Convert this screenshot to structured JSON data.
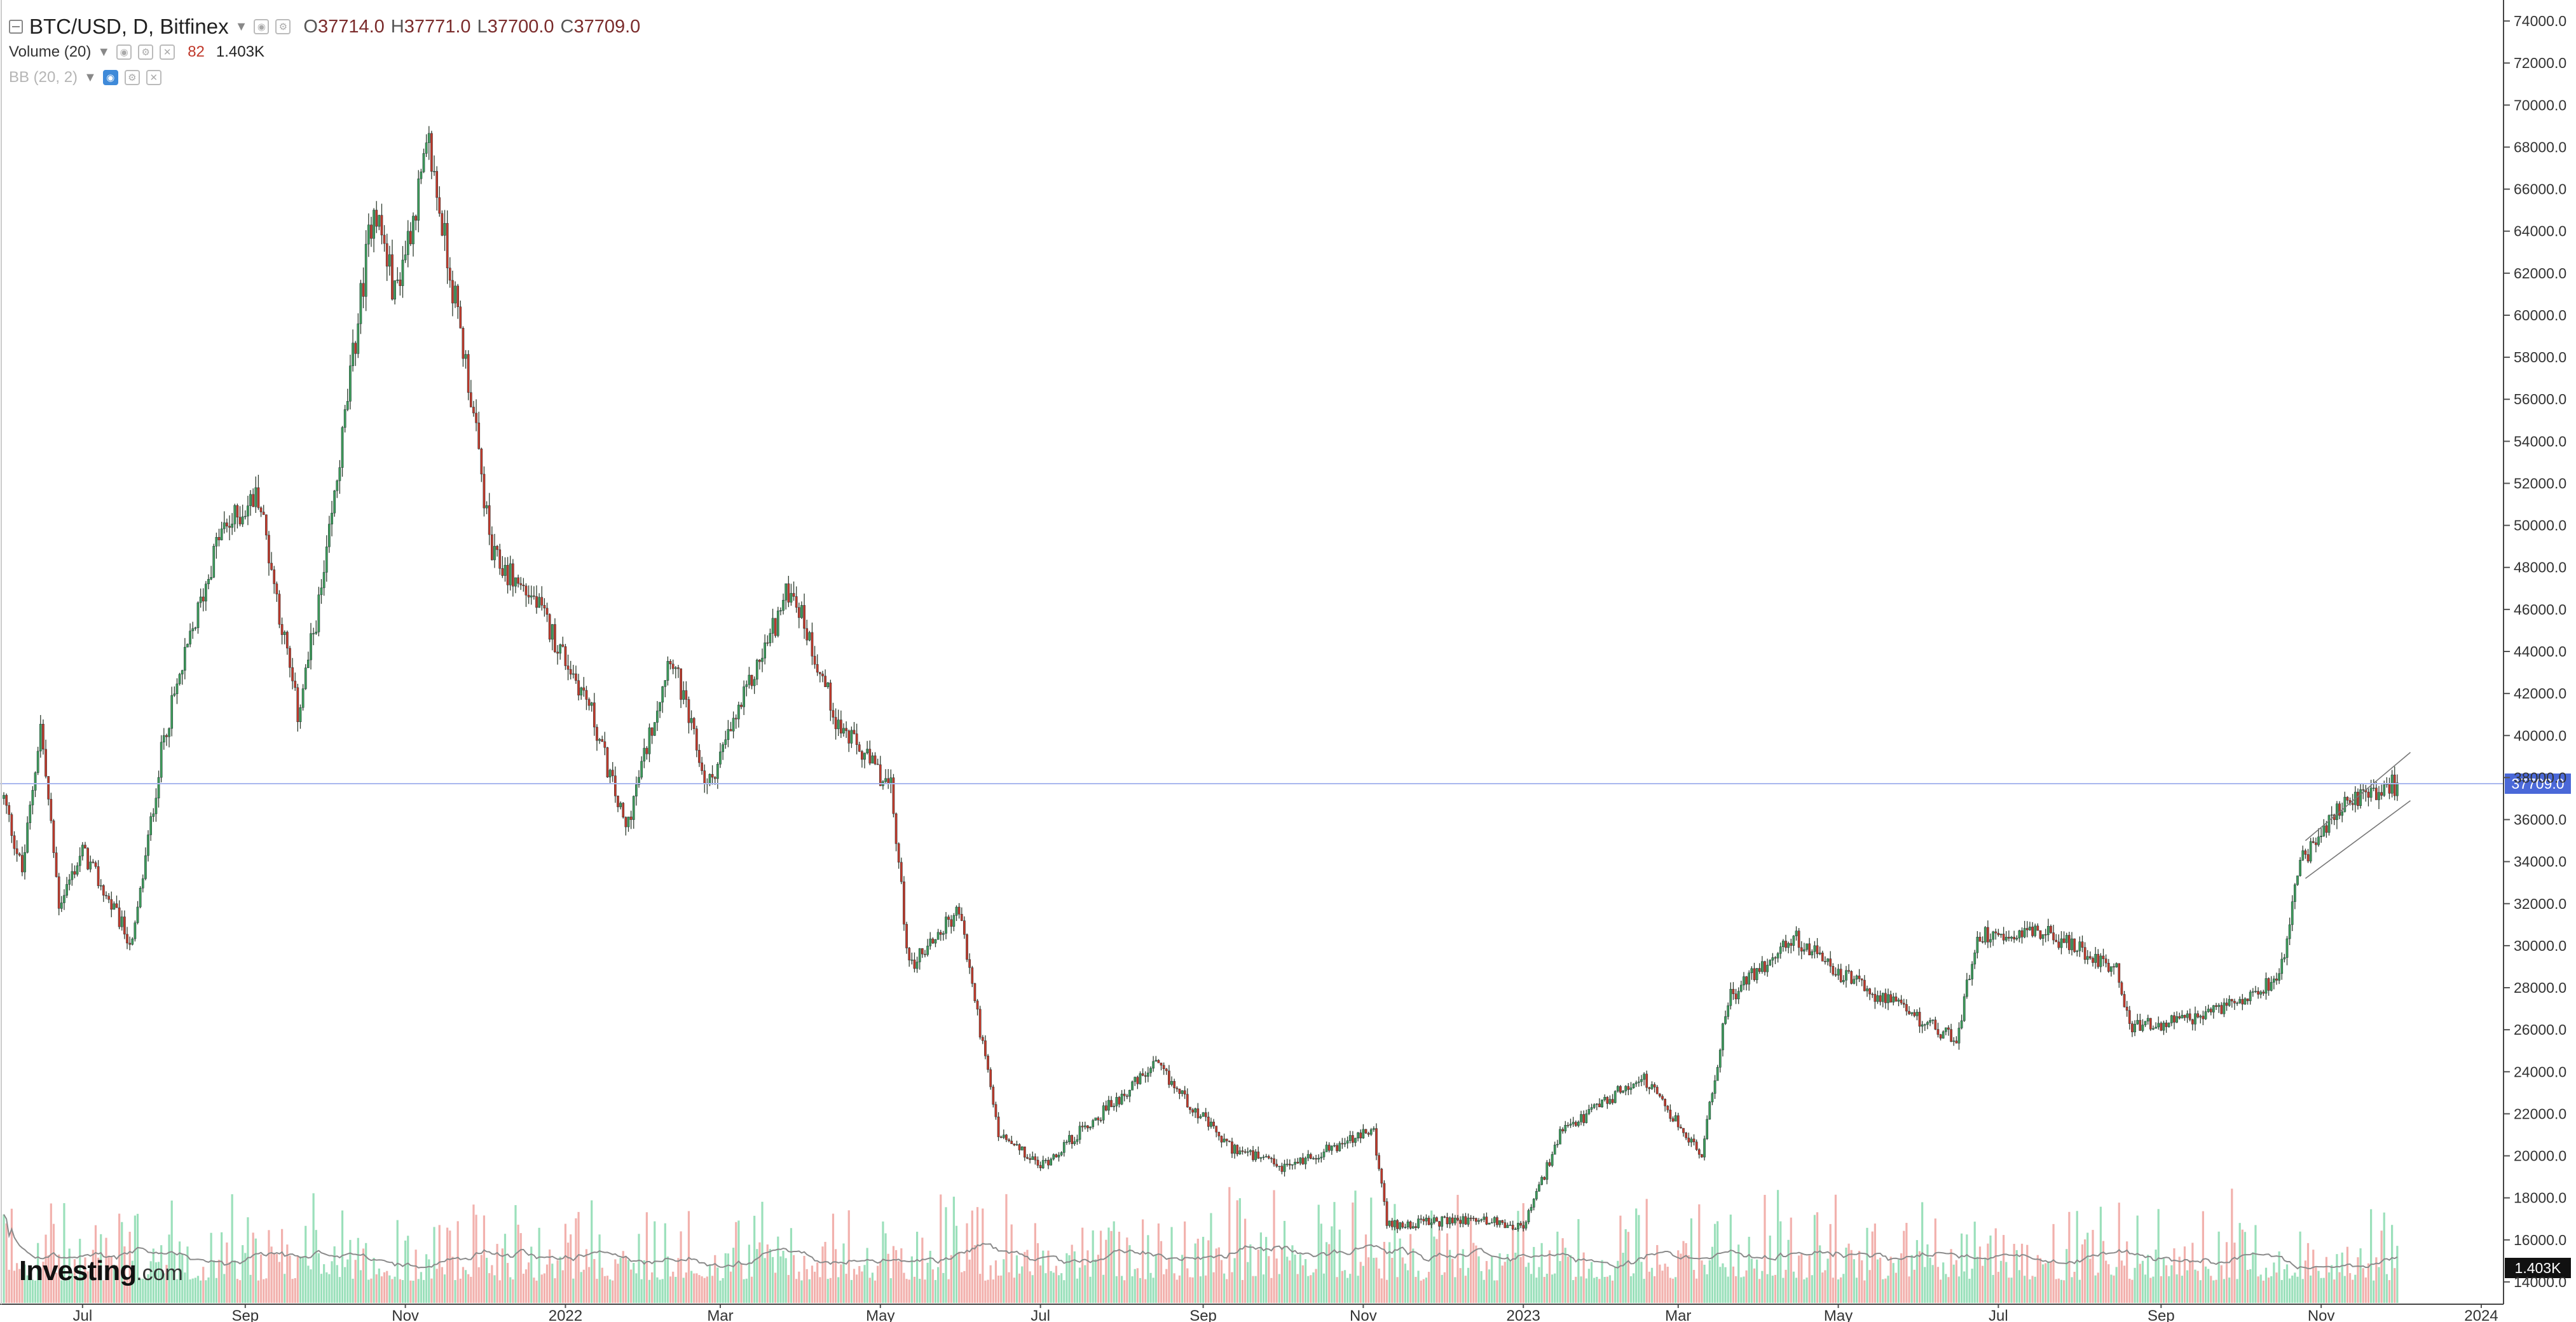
{
  "header": {
    "symbol": "BTC/USD, D, Bitfinex",
    "open_key": "O",
    "open": "37714.0",
    "high_key": "H",
    "high": "37771.0",
    "low_key": "L",
    "low": "37700.0",
    "close_key": "C",
    "close": "37709.0"
  },
  "volume_legend": {
    "label": "Volume (20)",
    "count": "82",
    "value": "1.403K"
  },
  "bb_legend": {
    "label": "BB (20, 2)"
  },
  "logo": {
    "brand": "Investing",
    "suffix": ".com"
  },
  "colors": {
    "up": "#3d9a5a",
    "down": "#c0392b",
    "up_volume": "#9be0bb",
    "down_volume": "#f2b1ad",
    "last_price": "#4a68d8",
    "grid": "#eeeeee"
  },
  "chart_data": {
    "type": "candlestick",
    "series": [
      {
        "name": "BTC/USD"
      }
    ],
    "last_price_label": "37709.0",
    "last_volume_label": "1.403K",
    "ylim": [
      13000,
      75000
    ],
    "y_ticks": [
      "74000.0",
      "72000.0",
      "70000.0",
      "68000.0",
      "66000.0",
      "64000.0",
      "62000.0",
      "60000.0",
      "58000.0",
      "56000.0",
      "54000.0",
      "52000.0",
      "50000.0",
      "48000.0",
      "46000.0",
      "44000.0",
      "42000.0",
      "40000.0",
      "38000.0",
      "36000.0",
      "34000.0",
      "32000.0",
      "30000.0",
      "28000.0",
      "26000.0",
      "24000.0",
      "22000.0",
      "20000.0",
      "18000.0",
      "16000.0",
      "14000.0"
    ],
    "x_ticks": [
      "Jul",
      "Sep",
      "Nov",
      "2022",
      "Mar",
      "May",
      "Jul",
      "Sep",
      "Nov",
      "2023",
      "Mar",
      "May",
      "Jul",
      "Sep",
      "Nov",
      "2024"
    ],
    "x_tick_dates": [
      "2021-07-01",
      "2021-09-01",
      "2021-11-01",
      "2022-01-01",
      "2022-03-01",
      "2022-05-01",
      "2022-07-01",
      "2022-09-01",
      "2022-11-01",
      "2023-01-01",
      "2023-03-01",
      "2023-05-01",
      "2023-07-01",
      "2023-09-01",
      "2023-11-01",
      "2024-01-01"
    ],
    "x_range": [
      "2021-06-01",
      "2024-01-09"
    ],
    "anchors": [
      [
        "2021-06-01",
        37000
      ],
      [
        "2021-06-08",
        33500
      ],
      [
        "2021-06-15",
        40500
      ],
      [
        "2021-06-22",
        32000
      ],
      [
        "2021-07-01",
        34500
      ],
      [
        "2021-07-20",
        30000
      ],
      [
        "2021-08-01",
        40000
      ],
      [
        "2021-08-22",
        49500
      ],
      [
        "2021-09-06",
        51500
      ],
      [
        "2021-09-21",
        41000
      ],
      [
        "2021-10-01",
        47500
      ],
      [
        "2021-10-20",
        65500
      ],
      [
        "2021-10-28",
        61000
      ],
      [
        "2021-11-10",
        68000
      ],
      [
        "2021-11-25",
        57000
      ],
      [
        "2021-12-04",
        48500
      ],
      [
        "2021-12-20",
        46500
      ],
      [
        "2022-01-10",
        41500
      ],
      [
        "2022-01-24",
        35500
      ],
      [
        "2022-02-10",
        44000
      ],
      [
        "2022-02-24",
        37500
      ],
      [
        "2022-03-28",
        47200
      ],
      [
        "2022-04-15",
        40500
      ],
      [
        "2022-05-05",
        37500
      ],
      [
        "2022-05-12",
        29000
      ],
      [
        "2022-05-31",
        31700
      ],
      [
        "2022-06-15",
        21000
      ],
      [
        "2022-07-01",
        19500
      ],
      [
        "2022-08-14",
        24300
      ],
      [
        "2022-09-10",
        20500
      ],
      [
        "2022-10-01",
        19400
      ],
      [
        "2022-11-05",
        21200
      ],
      [
        "2022-11-10",
        16700
      ],
      [
        "2022-12-15",
        17000
      ],
      [
        "2023-01-01",
        16600
      ],
      [
        "2023-01-15",
        21000
      ],
      [
        "2023-02-15",
        23800
      ],
      [
        "2023-03-10",
        20000
      ],
      [
        "2023-03-20",
        27500
      ],
      [
        "2023-04-14",
        30400
      ],
      [
        "2023-05-01",
        28700
      ],
      [
        "2023-06-15",
        25500
      ],
      [
        "2023-06-23",
        30500
      ],
      [
        "2023-07-15",
        30800
      ],
      [
        "2023-08-15",
        29000
      ],
      [
        "2023-08-20",
        26100
      ],
      [
        "2023-09-15",
        26500
      ],
      [
        "2023-10-16",
        28500
      ],
      [
        "2023-10-24",
        33900
      ],
      [
        "2023-11-09",
        36700
      ],
      [
        "2023-11-30",
        37700
      ]
    ]
  }
}
